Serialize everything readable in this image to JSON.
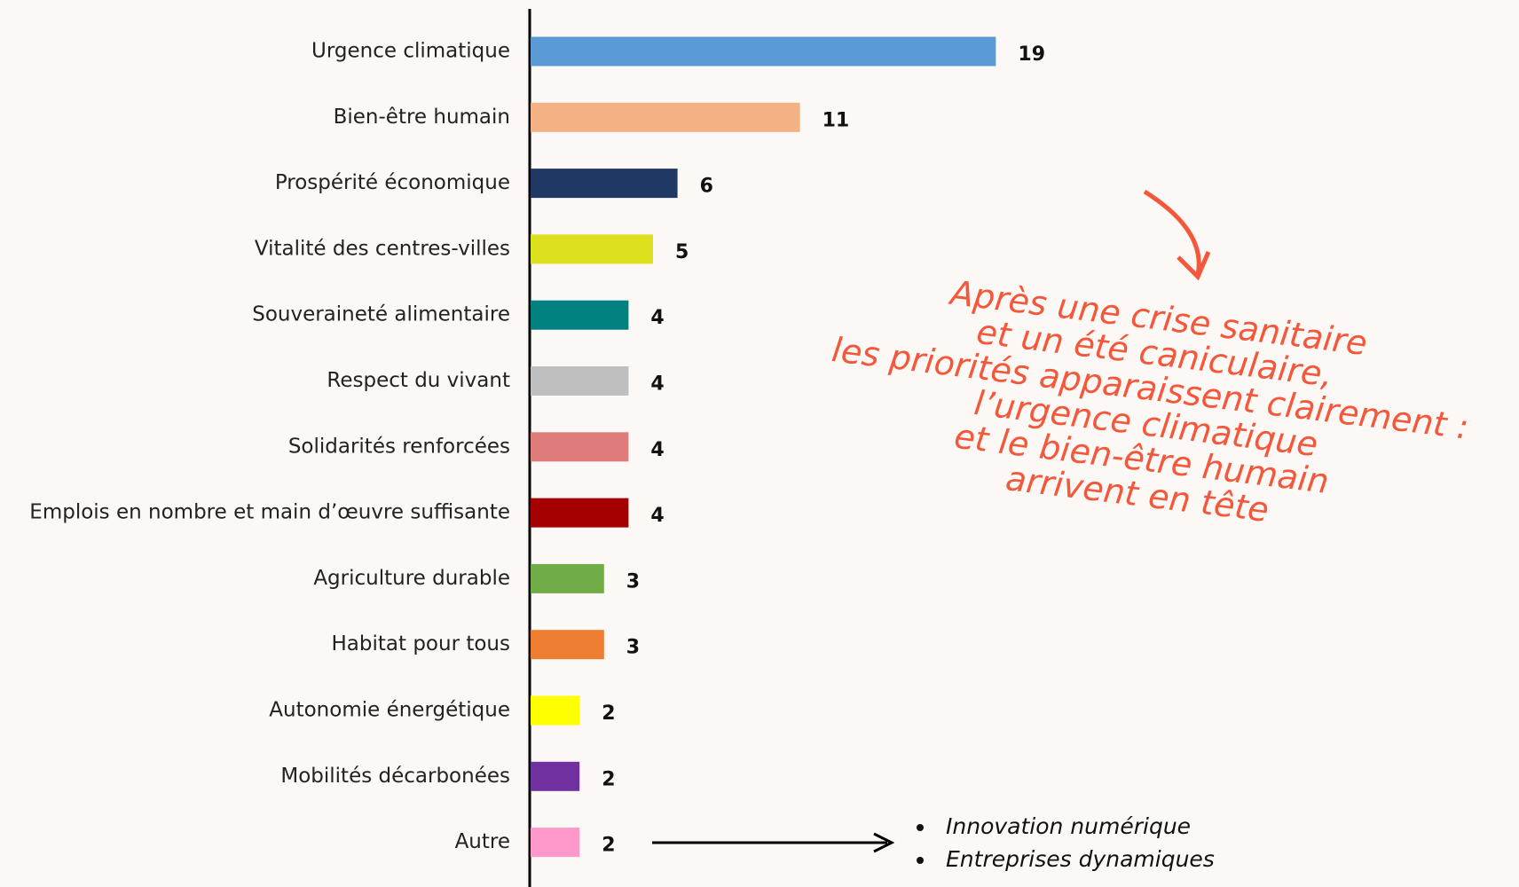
{
  "chart_data": {
    "type": "bar",
    "orientation": "horizontal",
    "categories": [
      "Urgence climatique",
      "Bien-être humain",
      "Prospérité économique",
      "Vitalité des centres-villes",
      "Souveraineté alimentaire",
      "Respect du vivant",
      "Solidarités renforcées",
      "Emplois en nombre et main d’œuvre suffisante",
      "Agriculture durable",
      "Habitat pour tous",
      "Autonomie énergétique",
      "Mobilités décarbonées",
      "Autre"
    ],
    "values": [
      19,
      11,
      6,
      5,
      4,
      4,
      4,
      4,
      3,
      3,
      2,
      2,
      2
    ],
    "colors": [
      "#5b9bd5",
      "#f4b183",
      "#203864",
      "#dde01c",
      "#00807f",
      "#bfbfbf",
      "#e07b7b",
      "#a50000",
      "#70ad47",
      "#ed7d31",
      "#ffff00",
      "#7030a0",
      "#ff99cc"
    ],
    "annotation": [
      "Après une crise sanitaire",
      "et un été caniculaire,",
      "les priorités apparaissent clairement :",
      "l’urgence climatique",
      "et le bien-être humain",
      "arrivent en tête"
    ],
    "other_items": [
      "Innovation numérique",
      "Entreprises dynamiques"
    ]
  }
}
